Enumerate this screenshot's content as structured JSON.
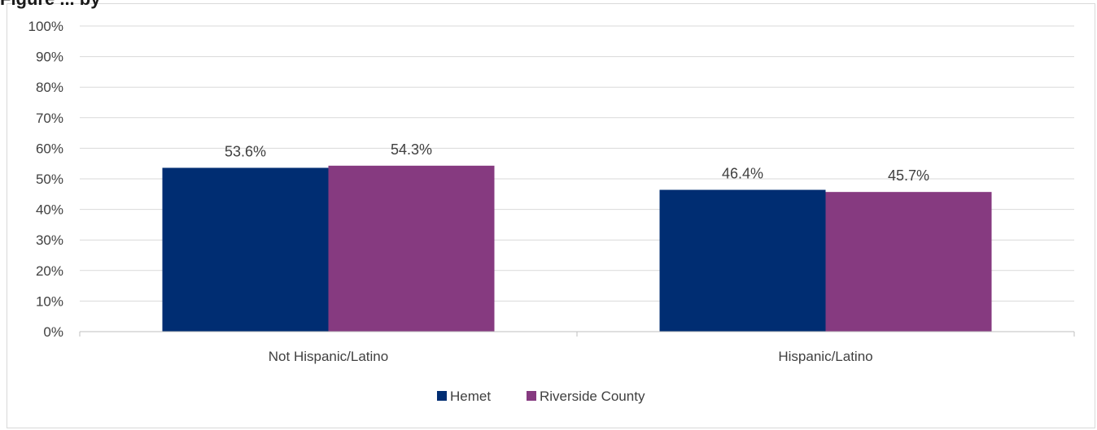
{
  "title_fragment": "Figure ... by",
  "colors": {
    "hemet": "#002D72",
    "riverside": "#863A80",
    "grid": "#d9d9d9",
    "axis": "#bfbfbf",
    "text": "#404040"
  },
  "chart_data": {
    "type": "bar",
    "title": "",
    "xlabel": "",
    "ylabel": "",
    "categories": [
      "Not Hispanic/Latino",
      "Hispanic/Latino"
    ],
    "series": [
      {
        "name": "Hemet",
        "values": [
          53.6,
          46.4
        ],
        "labels": [
          "53.6%",
          "46.4%"
        ],
        "color": "#002D72"
      },
      {
        "name": "Riverside County",
        "values": [
          54.3,
          45.7
        ],
        "labels": [
          "54.3%",
          "45.7%"
        ],
        "color": "#863A80"
      }
    ],
    "ylim": [
      0,
      100
    ],
    "yticks": [
      0,
      10,
      20,
      30,
      40,
      50,
      60,
      70,
      80,
      90,
      100
    ],
    "ytick_labels": [
      "0%",
      "10%",
      "20%",
      "30%",
      "40%",
      "50%",
      "60%",
      "70%",
      "80%",
      "90%",
      "100%"
    ],
    "grid": true,
    "legend_position": "bottom-center"
  }
}
